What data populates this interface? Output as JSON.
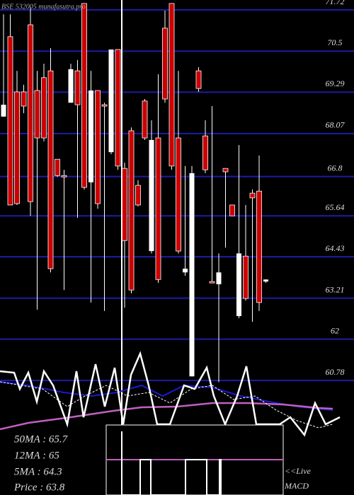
{
  "chart_data": {
    "type": "candlestick",
    "title": "BSE 532005 munafasutra.pro",
    "ylim": [
      60.78,
      71.72
    ],
    "yticks": [
      71.72,
      70.5,
      69.29,
      68.07,
      66.8,
      65.64,
      64.43,
      63.21,
      62,
      60.78
    ],
    "grid": true,
    "up_color": "#ffffff",
    "down_color": "#cc0000",
    "grid_color": "#1c1ca8",
    "open": [
      68.57,
      70.93,
      69.3,
      69.3,
      71.28,
      69.34,
      69.72,
      69.92,
      67.31,
      66.83,
      68.98,
      69.92,
      71.91,
      66.63,
      69.34,
      68.92,
      67.52,
      70.55,
      67.04,
      68.15,
      66.54,
      69.03,
      64.6,
      67.94,
      71.18,
      71.91,
      67.94,
      63.97,
      60.9,
      69.92,
      68.0,
      63.7,
      63.62,
      67.04,
      65.96,
      62.68,
      64.45,
      66.31,
      66.37,
      63.7
    ],
    "high": [
      71.59,
      71.59,
      69.92,
      69.51,
      71.8,
      69.92,
      70.13,
      70.59,
      67.31,
      67.0,
      70.13,
      70.24,
      71.91,
      69.92,
      69.34,
      68.98,
      70.55,
      70.55,
      67.21,
      68.25,
      66.69,
      69.09,
      68.46,
      69.82,
      71.7,
      71.91,
      69.92,
      67.11,
      67.11,
      70.03,
      68.46,
      68.88,
      64.53,
      67.04,
      65.96,
      67.73,
      65.96,
      66.42,
      67.42,
      63.76
    ],
    "low": [
      68.57,
      65.96,
      65.96,
      68.67,
      65.64,
      62.87,
      67.84,
      63.97,
      66.79,
      63.45,
      68.98,
      65.58,
      66.42,
      63.08,
      65.85,
      62.83,
      67.46,
      67.0,
      62.93,
      63.35,
      65.92,
      67.88,
      64.53,
      63.66,
      68.98,
      67.0,
      64.53,
      63.87,
      60.9,
      69.3,
      66.9,
      63.66,
      60.73,
      64.7,
      65.64,
      62.62,
      63.14,
      62.51,
      62.83,
      63.66
    ],
    "close": [
      68.92,
      65.96,
      66.0,
      68.88,
      66.06,
      67.94,
      67.94,
      64.08,
      66.83,
      66.79,
      69.97,
      68.92,
      66.48,
      69.34,
      66.0,
      68.88,
      70.55,
      67.11,
      64.91,
      63.45,
      65.96,
      67.94,
      67.88,
      63.76,
      69.09,
      67.11,
      64.6,
      64.08,
      66.9,
      69.4,
      67.0,
      63.66,
      63.97,
      66.94,
      65.64,
      64.53,
      63.2,
      66.17,
      63.08,
      63.76
    ],
    "annotations": [
      "50MA : 65.7",
      "12MA : 65",
      "5MA : 64.3",
      "Price  : 63.8",
      "<<Live",
      "MACD"
    ]
  }
}
